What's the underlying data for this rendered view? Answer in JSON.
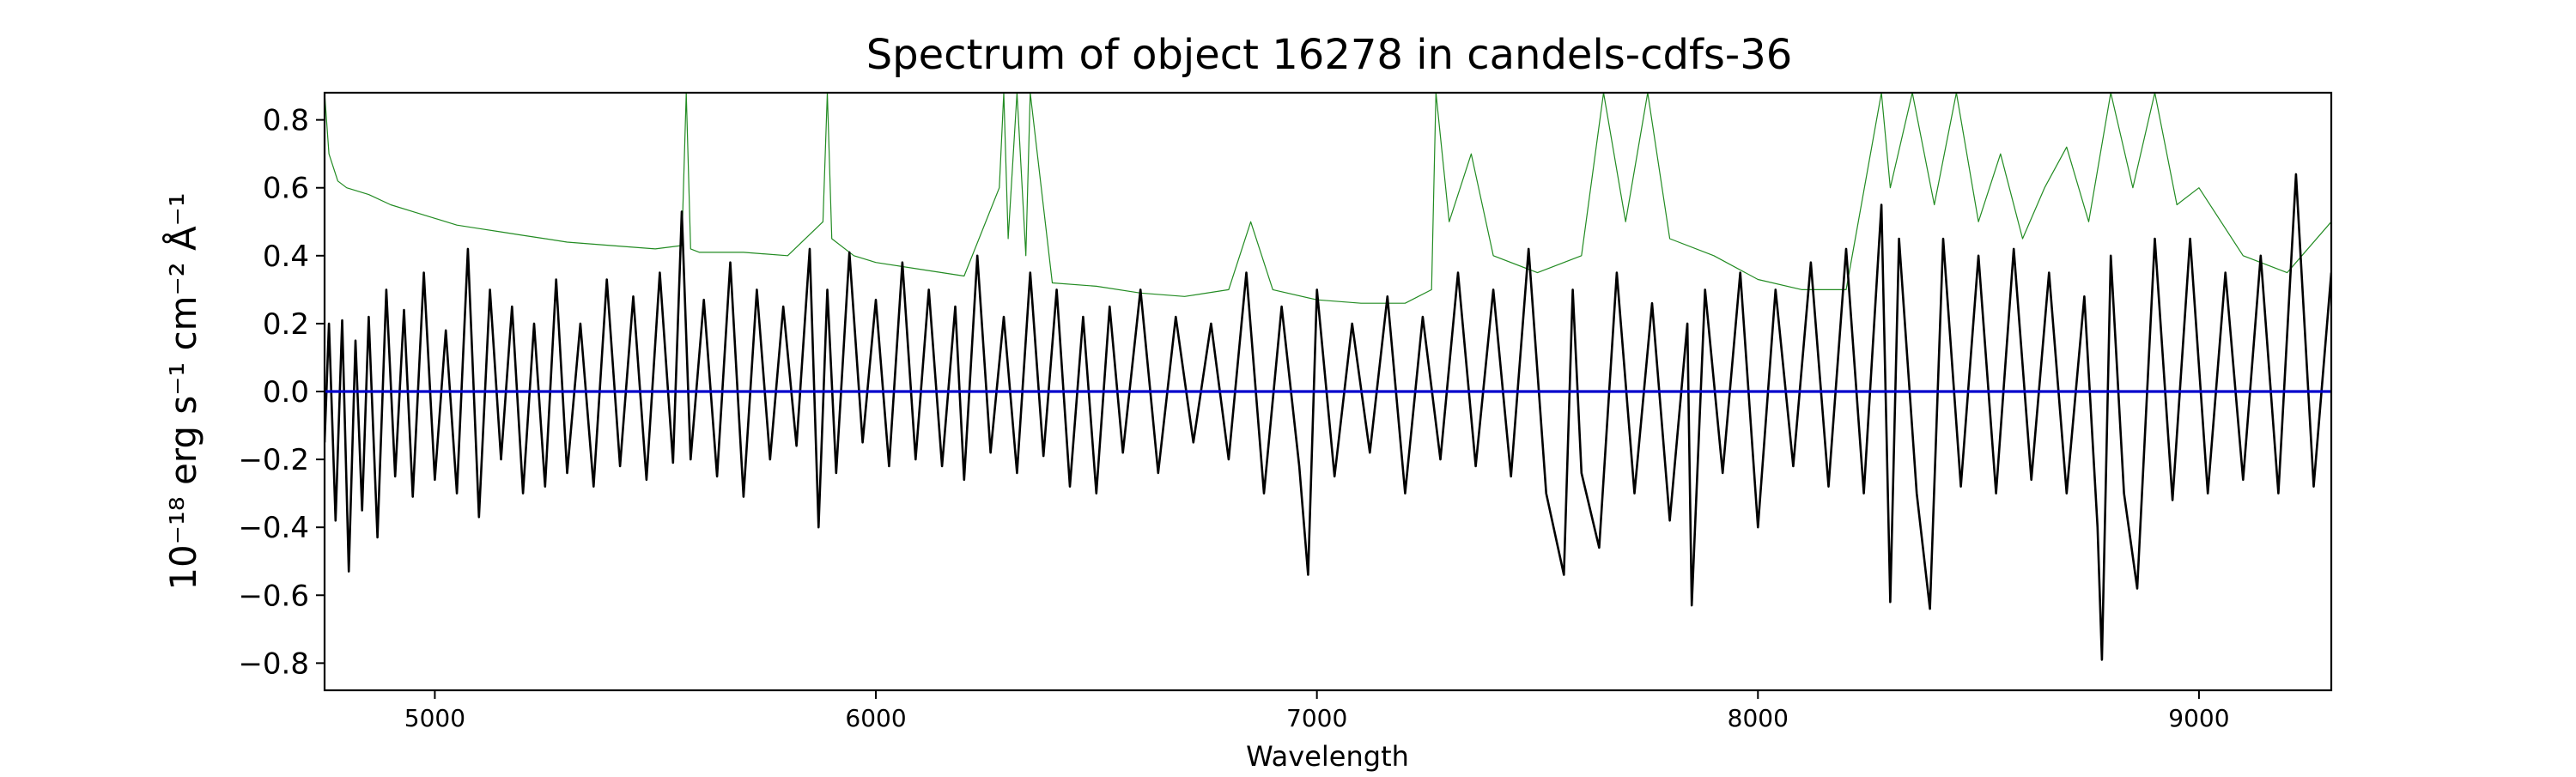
{
  "chart_data": {
    "type": "line",
    "title": "Spectrum of object 16278 in candels-cdfs-36",
    "xlabel": "Wavelength",
    "ylabel": "10⁻¹⁸ erg s⁻¹ cm⁻² Å⁻¹",
    "xlim": [
      4750,
      9300
    ],
    "ylim": [
      -0.88,
      0.88
    ],
    "x_ticks": [
      5000,
      6000,
      7000,
      8000,
      9000
    ],
    "y_ticks": [
      -0.8,
      -0.6,
      -0.4,
      -0.2,
      0.0,
      0.2,
      0.4,
      0.6,
      0.8
    ],
    "x_tick_labels": [
      "5000",
      "6000",
      "7000",
      "8000",
      "9000"
    ],
    "y_tick_labels": [
      "−0.8",
      "−0.6",
      "−0.4",
      "−0.2",
      "0.0",
      "0.2",
      "0.4",
      "0.6",
      "0.8"
    ],
    "grid": false,
    "legend": "none",
    "colors": {
      "flux": "#000000",
      "error": "#228b22",
      "zero": "#0000cc"
    },
    "series": [
      {
        "role": "flux",
        "color": "#000000",
        "x": [
          4750,
          4760,
          4775,
          4790,
          4805,
          4820,
          4835,
          4850,
          4870,
          4890,
          4910,
          4930,
          4950,
          4975,
          5000,
          5025,
          5050,
          5075,
          5100,
          5125,
          5150,
          5175,
          5200,
          5225,
          5250,
          5275,
          5300,
          5330,
          5360,
          5390,
          5420,
          5450,
          5480,
          5510,
          5540,
          5560,
          5580,
          5610,
          5640,
          5670,
          5700,
          5730,
          5760,
          5790,
          5820,
          5850,
          5870,
          5890,
          5910,
          5940,
          5970,
          6000,
          6030,
          6060,
          6090,
          6120,
          6150,
          6180,
          6200,
          6230,
          6260,
          6290,
          6320,
          6350,
          6380,
          6410,
          6440,
          6470,
          6500,
          6530,
          6560,
          6600,
          6640,
          6680,
          6720,
          6760,
          6800,
          6840,
          6880,
          6920,
          6960,
          6980,
          7000,
          7040,
          7080,
          7120,
          7160,
          7200,
          7240,
          7280,
          7320,
          7360,
          7400,
          7440,
          7480,
          7520,
          7560,
          7580,
          7600,
          7640,
          7680,
          7720,
          7760,
          7800,
          7840,
          7850,
          7880,
          7920,
          7960,
          8000,
          8040,
          8080,
          8120,
          8160,
          8200,
          8240,
          8280,
          8300,
          8320,
          8360,
          8390,
          8420,
          8460,
          8500,
          8540,
          8580,
          8620,
          8660,
          8700,
          8740,
          8770,
          8780,
          8800,
          8830,
          8860,
          8900,
          8940,
          8980,
          9020,
          9060,
          9100,
          9140,
          9180,
          9220,
          9260,
          9300
        ],
        "values": [
          -0.15,
          0.2,
          -0.38,
          0.21,
          -0.53,
          0.15,
          -0.35,
          0.22,
          -0.43,
          0.3,
          -0.25,
          0.24,
          -0.31,
          0.35,
          -0.26,
          0.18,
          -0.3,
          0.42,
          -0.37,
          0.3,
          -0.2,
          0.25,
          -0.3,
          0.2,
          -0.28,
          0.33,
          -0.24,
          0.2,
          -0.28,
          0.33,
          -0.22,
          0.28,
          -0.26,
          0.35,
          -0.21,
          0.53,
          -0.2,
          0.27,
          -0.25,
          0.38,
          -0.31,
          0.3,
          -0.2,
          0.25,
          -0.16,
          0.42,
          -0.4,
          0.3,
          -0.24,
          0.41,
          -0.15,
          0.27,
          -0.22,
          0.38,
          -0.2,
          0.3,
          -0.22,
          0.25,
          -0.26,
          0.4,
          -0.18,
          0.22,
          -0.24,
          0.35,
          -0.19,
          0.3,
          -0.28,
          0.22,
          -0.3,
          0.25,
          -0.18,
          0.3,
          -0.24,
          0.22,
          -0.15,
          0.2,
          -0.2,
          0.35,
          -0.3,
          0.25,
          -0.22,
          -0.54,
          0.3,
          -0.25,
          0.2,
          -0.18,
          0.28,
          -0.3,
          0.22,
          -0.2,
          0.35,
          -0.22,
          0.3,
          -0.25,
          0.42,
          -0.3,
          -0.54,
          0.3,
          -0.24,
          -0.46,
          0.35,
          -0.3,
          0.26,
          -0.38,
          0.2,
          -0.63,
          0.3,
          -0.24,
          0.35,
          -0.4,
          0.3,
          -0.22,
          0.38,
          -0.28,
          0.42,
          -0.3,
          0.55,
          -0.62,
          0.45,
          -0.3,
          -0.64,
          0.45,
          -0.28,
          0.4,
          -0.3,
          0.42,
          -0.26,
          0.35,
          -0.3,
          0.28,
          -0.4,
          -0.79,
          0.4,
          -0.3,
          -0.58,
          0.45,
          -0.32,
          0.45,
          -0.3,
          0.35,
          -0.26,
          0.4,
          -0.3,
          0.64,
          -0.28,
          0.35
        ]
      },
      {
        "role": "error",
        "color": "#228b22",
        "x": [
          4750,
          4760,
          4780,
          4800,
          4850,
          4900,
          4950,
          5000,
          5050,
          5100,
          5150,
          5200,
          5250,
          5300,
          5400,
          5500,
          5560,
          5570,
          5580,
          5600,
          5700,
          5800,
          5880,
          5890,
          5900,
          5950,
          6000,
          6100,
          6200,
          6280,
          6290,
          6300,
          6320,
          6340,
          6350,
          6400,
          6500,
          6600,
          6700,
          6800,
          6850,
          6900,
          7000,
          7100,
          7200,
          7260,
          7270,
          7300,
          7350,
          7400,
          7500,
          7600,
          7650,
          7700,
          7750,
          7800,
          7900,
          8000,
          8100,
          8200,
          8280,
          8300,
          8350,
          8400,
          8450,
          8500,
          8550,
          8600,
          8650,
          8700,
          8750,
          8800,
          8850,
          8900,
          8950,
          9000,
          9100,
          9200,
          9300
        ],
        "values": [
          0.88,
          0.7,
          0.62,
          0.6,
          0.58,
          0.55,
          0.53,
          0.51,
          0.49,
          0.48,
          0.47,
          0.46,
          0.45,
          0.44,
          0.43,
          0.42,
          0.43,
          0.88,
          0.42,
          0.41,
          0.41,
          0.4,
          0.5,
          0.88,
          0.45,
          0.4,
          0.38,
          0.36,
          0.34,
          0.6,
          0.88,
          0.45,
          0.88,
          0.4,
          0.88,
          0.32,
          0.31,
          0.29,
          0.28,
          0.3,
          0.5,
          0.3,
          0.27,
          0.26,
          0.26,
          0.3,
          0.88,
          0.5,
          0.7,
          0.4,
          0.35,
          0.4,
          0.88,
          0.5,
          0.88,
          0.45,
          0.4,
          0.33,
          0.3,
          0.3,
          0.88,
          0.6,
          0.88,
          0.55,
          0.88,
          0.5,
          0.7,
          0.45,
          0.6,
          0.72,
          0.5,
          0.88,
          0.6,
          0.88,
          0.55,
          0.6,
          0.4,
          0.35,
          0.5
        ]
      },
      {
        "role": "zero",
        "color": "#0000cc",
        "x": [
          4750,
          9300
        ],
        "values": [
          0.0,
          0.0
        ]
      }
    ]
  }
}
